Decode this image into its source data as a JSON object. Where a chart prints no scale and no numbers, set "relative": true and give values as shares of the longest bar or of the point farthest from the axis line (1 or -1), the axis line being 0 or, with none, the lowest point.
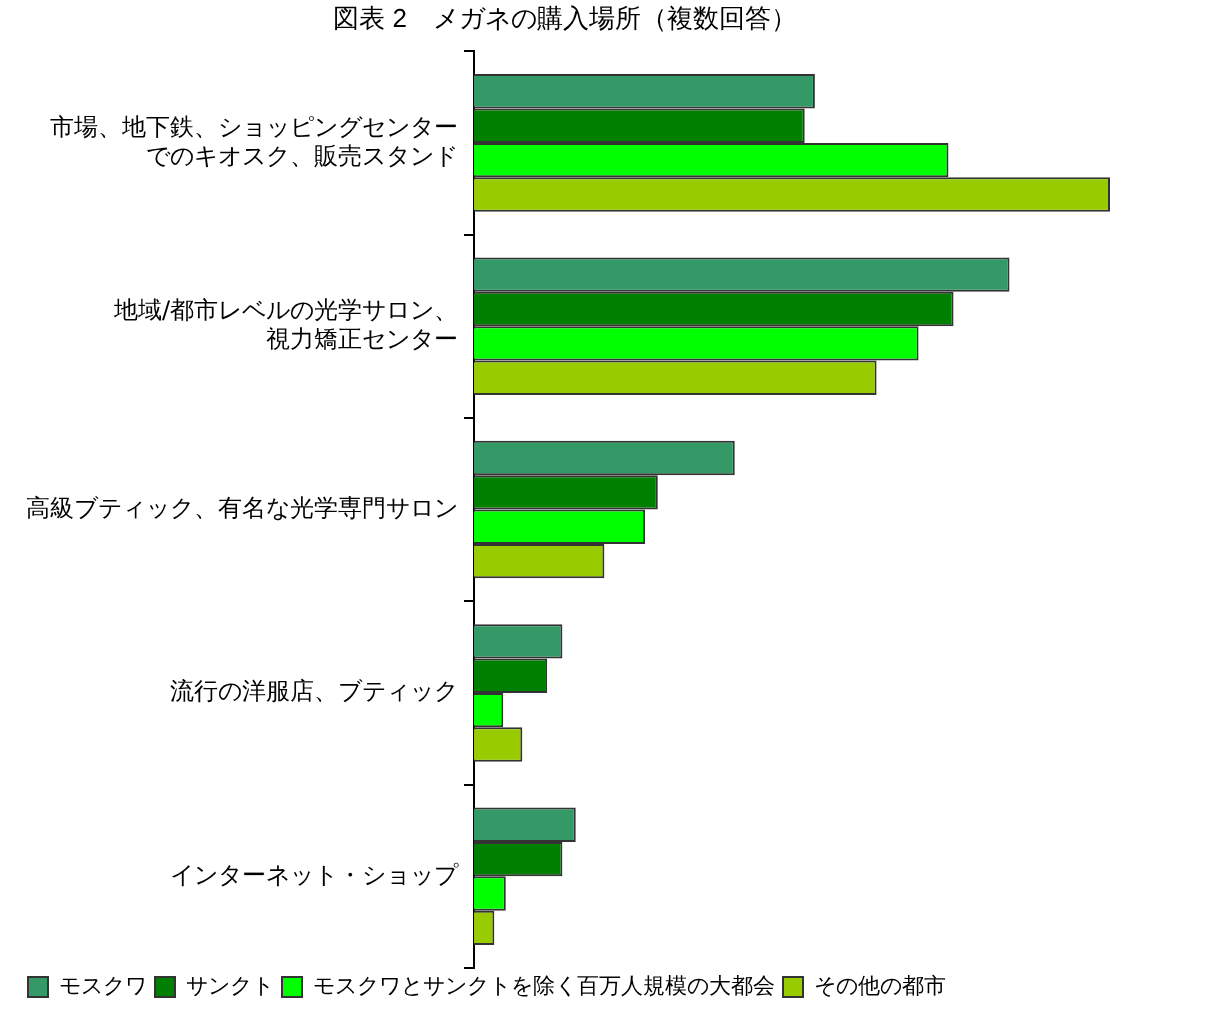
{
  "chart_data": {
    "type": "bar",
    "orientation": "horizontal",
    "relative": true,
    "title": "図表 2　メガネの購入場所（複数回答）",
    "legend": "bottom left",
    "categories": [
      "市場、地下鉄、ショッピングセンターでのキオスク、販売スタンド",
      "地域/都市レベルの光学サロン、視力矯正センター",
      "高級ブティック、有名な光学専門サロン",
      "流行の洋服店、ブティック",
      "インターネット・ショップ"
    ],
    "series": [
      {
        "name": "モスクワ",
        "color": "#339966",
        "values": [
          0.536,
          0.842,
          0.41,
          0.139,
          0.16
        ]
      },
      {
        "name": "サンクト",
        "color": "#008000",
        "values": [
          0.52,
          0.754,
          0.289,
          0.115,
          0.139
        ]
      },
      {
        "name": "モスクワとサンクトを除く百万人規模の大都会",
        "color": "#00ff00",
        "values": [
          0.746,
          0.699,
          0.269,
          0.046,
          0.05
        ]
      },
      {
        "name": "その他の都市",
        "color": "#99cc00",
        "values": [
          1,
          0.633,
          0.205,
          0.076,
          0.032
        ]
      }
    ]
  }
}
